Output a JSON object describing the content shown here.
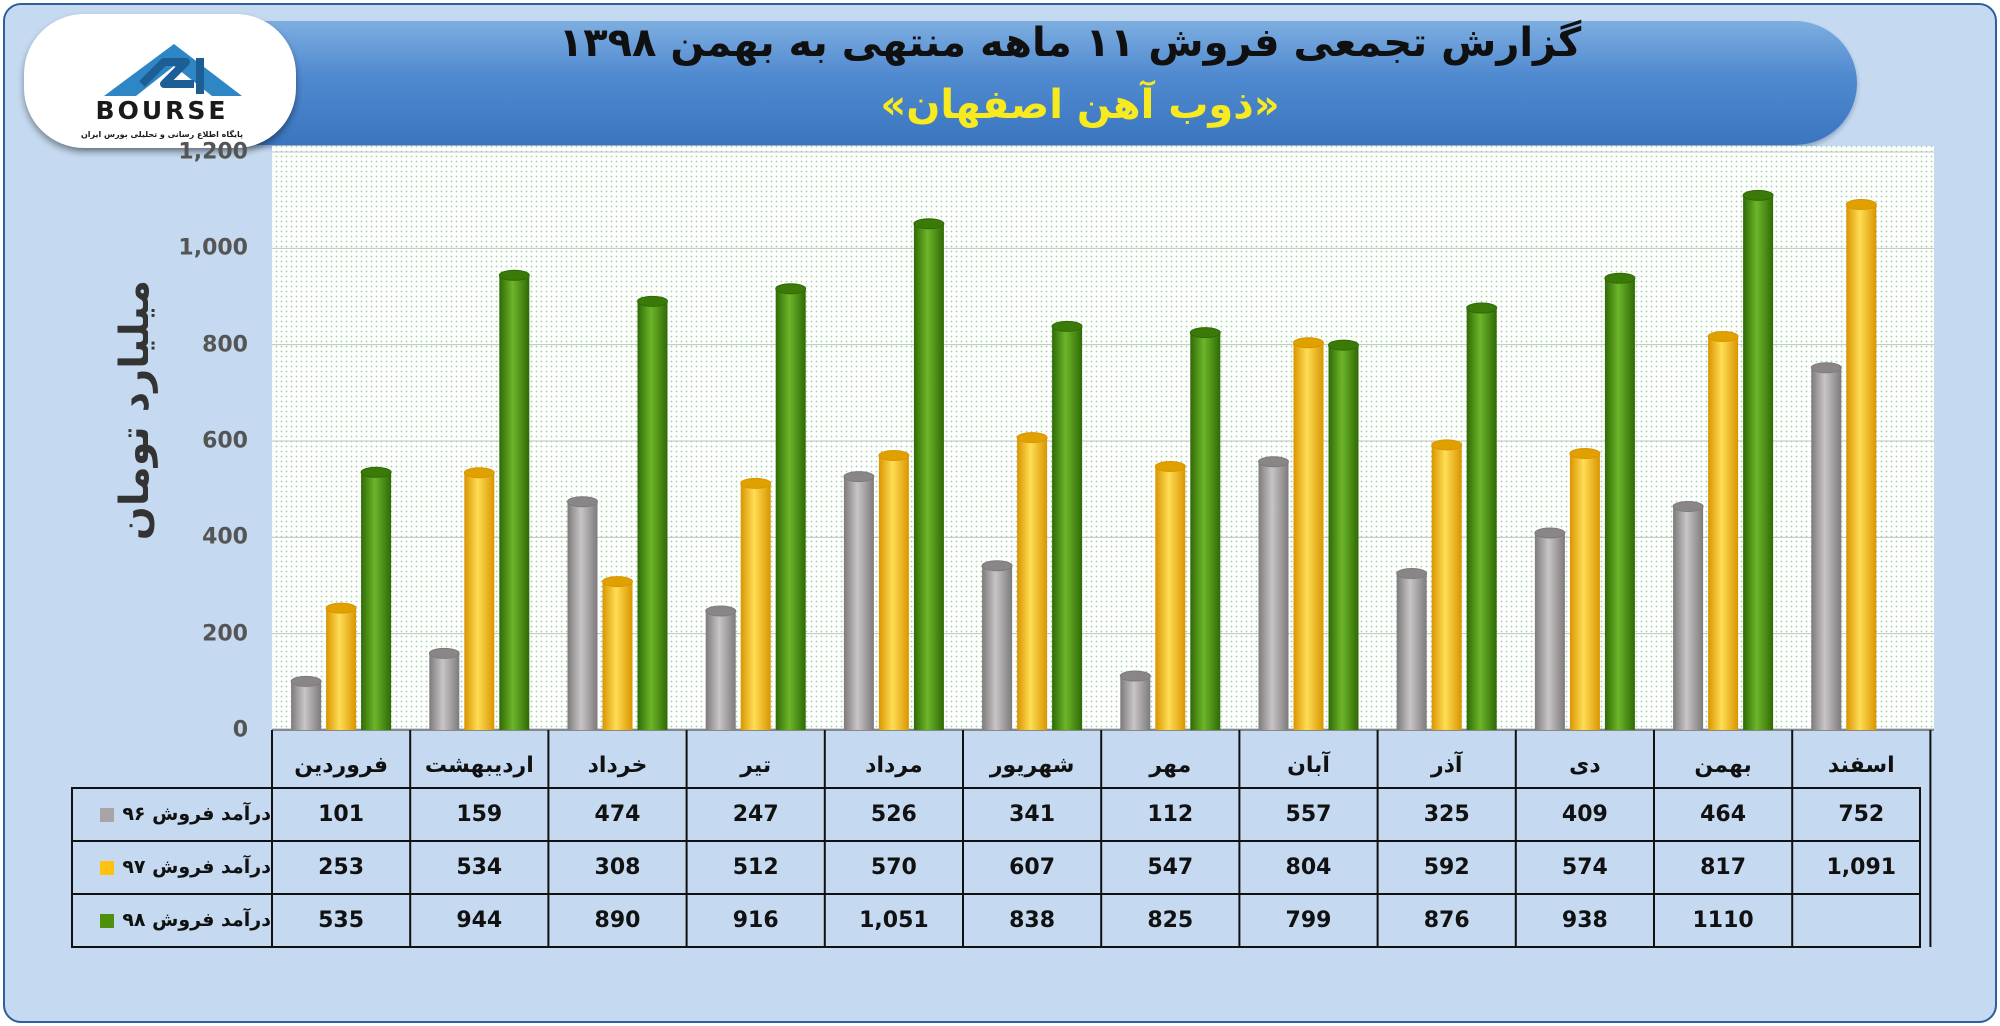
{
  "header": {
    "title": "گزارش تجمعی فروش ۱۱ ماهه منتهی به بهمن ۱۳۹۸",
    "subtitle": "«ذوب آهن اصفهان»"
  },
  "logo": {
    "word": "BOURSE",
    "caption": "پایگاه اطلاع رسانی و تحلیلی بورس ایران"
  },
  "colors": {
    "series_96": "#a9a4a6",
    "series_97": "#ffc20e",
    "series_98": "#4e8f0c"
  },
  "chart_data": {
    "type": "bar",
    "ylabel": "میلیارد تومان",
    "ylim": [
      0,
      1200
    ],
    "yticks": [
      "0",
      "200",
      "400",
      "600",
      "800",
      "1,000",
      "1,200"
    ],
    "grid": true,
    "legend": "table below chart",
    "categories": [
      "فروردین",
      "اردیبهشت",
      "خرداد",
      "تیر",
      "مرداد",
      "شهریور",
      "مهر",
      "آبان",
      "آذر",
      "دی",
      "بهمن",
      "اسفند"
    ],
    "series": [
      {
        "name": "درآمد فروش ۹۶",
        "color": "#a9a4a6",
        "values": [
          101,
          159,
          474,
          247,
          526,
          341,
          112,
          557,
          325,
          409,
          464,
          752
        ],
        "labels": [
          "101",
          "159",
          "474",
          "247",
          "526",
          "341",
          "112",
          "557",
          "325",
          "409",
          "464",
          "752"
        ]
      },
      {
        "name": "درآمد فروش ۹۷",
        "color": "#ffc20e",
        "values": [
          253,
          534,
          308,
          512,
          570,
          607,
          547,
          804,
          592,
          574,
          817,
          1091
        ],
        "labels": [
          "253",
          "534",
          "308",
          "512",
          "570",
          "607",
          "547",
          "804",
          "592",
          "574",
          "817",
          "1,091"
        ]
      },
      {
        "name": "درآمد فروش ۹۸",
        "color": "#4e8f0c",
        "values": [
          535,
          944,
          890,
          916,
          1051,
          838,
          825,
          799,
          876,
          938,
          1110,
          null
        ],
        "labels": [
          "535",
          "944",
          "890",
          "916",
          "1,051",
          "838",
          "825",
          "799",
          "876",
          "938",
          "1110",
          ""
        ]
      }
    ]
  }
}
